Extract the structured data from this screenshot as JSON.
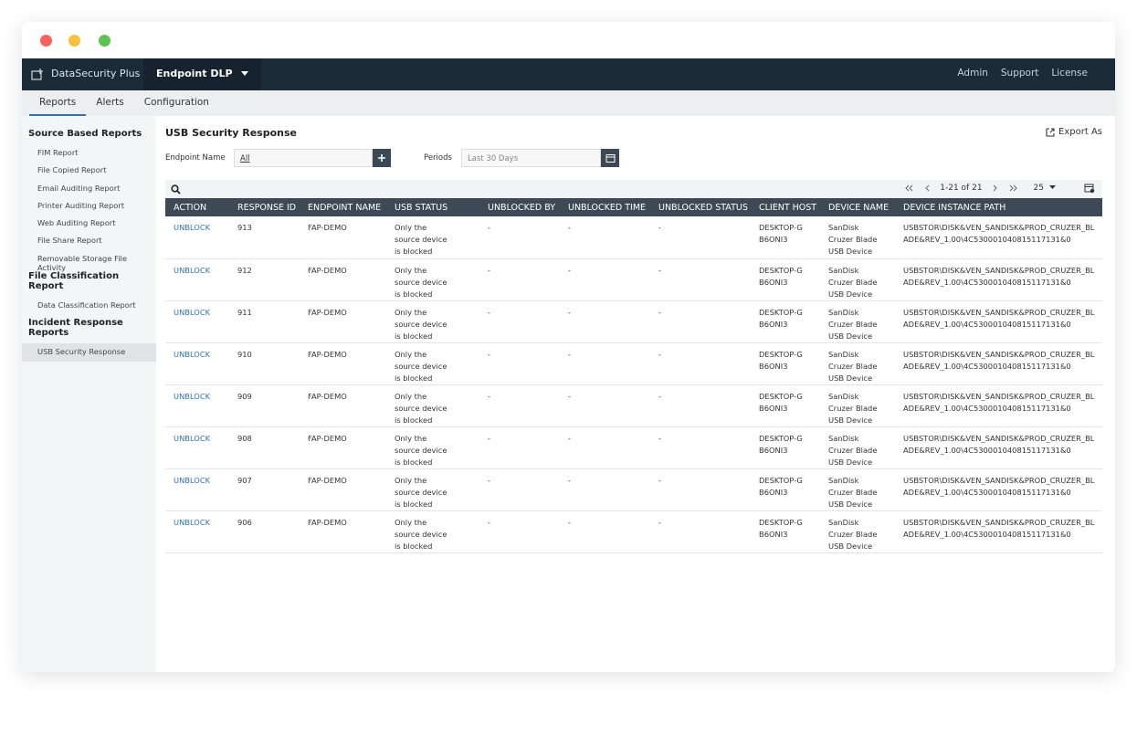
{
  "app": {
    "brand": "DataSecurity Plus",
    "product": "Endpoint DLP",
    "top_links": [
      "Admin",
      "Support",
      "License"
    ]
  },
  "tabs": [
    "Reports",
    "Alerts",
    "Configuration"
  ],
  "sidebar": [
    {
      "title": "Source Based Reports",
      "items": [
        "FIM Report",
        "File Copied Report",
        "Email Auditing Report",
        "Printer Auditing Report",
        "Web Auditing Report",
        "File Share Report",
        "Removable Storage File Activity"
      ]
    },
    {
      "title": "File Classification Report",
      "items": [
        "Data Classification Report"
      ]
    },
    {
      "title": "Incident Response Reports",
      "items": [
        "USB Security Response"
      ]
    }
  ],
  "report": {
    "title": "USB Security Response",
    "export": "Export As",
    "filters": {
      "endpoint_label": "Endpoint Name",
      "endpoint_value": "All",
      "period_label": "Periods",
      "period_value": "Last 30 Days"
    },
    "pagination": "1-21 of 21",
    "page_size": "25"
  },
  "table": {
    "columns": [
      "ACTION",
      "RESPONSE ID",
      "ENDPOINT NAME",
      "USB STATUS",
      "UNBLOCKED BY",
      "UNBLOCKED TIME",
      "UNBLOCKED STATUS",
      "CLIENT HOST",
      "DEVICE NAME",
      "DEVICE INSTANCE PATH"
    ],
    "rows": [
      [
        "UNBLOCK",
        "913",
        "FAP-DEMO",
        "Only the source device is blocked",
        "-",
        "-",
        "-",
        "DESKTOP-GB6ONI3",
        "SanDisk Cruzer Blade USB Device",
        "USBSTOR\\DISK&VEN_SANDISK&PROD_CRUZER_BLADE&REV_1.00\\4C530001040815117131&0"
      ],
      [
        "UNBLOCK",
        "912",
        "FAP-DEMO",
        "Only the source device is blocked",
        "-",
        "-",
        "-",
        "DESKTOP-GB6ONI3",
        "SanDisk Cruzer Blade USB Device",
        "USBSTOR\\DISK&VEN_SANDISK&PROD_CRUZER_BLADE&REV_1.00\\4C530001040815117131&0"
      ],
      [
        "UNBLOCK",
        "911",
        "FAP-DEMO",
        "Only the source device is blocked",
        "-",
        "-",
        "-",
        "DESKTOP-GB6ONI3",
        "SanDisk Cruzer Blade USB Device",
        "USBSTOR\\DISK&VEN_SANDISK&PROD_CRUZER_BLADE&REV_1.00\\4C530001040815117131&0"
      ],
      [
        "UNBLOCK",
        "910",
        "FAP-DEMO",
        "Only the source device is blocked",
        "-",
        "-",
        "-",
        "DESKTOP-GB6ONI3",
        "SanDisk Cruzer Blade USB Device",
        "USBSTOR\\DISK&VEN_SANDISK&PROD_CRUZER_BLADE&REV_1.00\\4C530001040815117131&0"
      ],
      [
        "UNBLOCK",
        "909",
        "FAP-DEMO",
        "Only the source device is blocked",
        "-",
        "-",
        "-",
        "DESKTOP-GB6ONI3",
        "SanDisk Cruzer Blade USB Device",
        "USBSTOR\\DISK&VEN_SANDISK&PROD_CRUZER_BLADE&REV_1.00\\4C530001040815117131&0"
      ],
      [
        "UNBLOCK",
        "908",
        "FAP-DEMO",
        "Only the source device is blocked",
        "-",
        "-",
        "-",
        "DESKTOP-GB6ONI3",
        "SanDisk Cruzer Blade USB Device",
        "USBSTOR\\DISK&VEN_SANDISK&PROD_CRUZER_BLADE&REV_1.00\\4C530001040815117131&0"
      ],
      [
        "UNBLOCK",
        "907",
        "FAP-DEMO",
        "Only the source device is blocked",
        "-",
        "-",
        "-",
        "DESKTOP-GB6ONI3",
        "SanDisk Cruzer Blade USB Device",
        "USBSTOR\\DISK&VEN_SANDISK&PROD_CRUZER_BLADE&REV_1.00\\4C530001040815117131&0"
      ],
      [
        "UNBLOCK",
        "906",
        "FAP-DEMO",
        "Only the source device is blocked",
        "-",
        "-",
        "-",
        "DESKTOP-GB6ONI3",
        "SanDisk Cruzer Blade USB Device",
        "USBSTOR\\DISK&VEN_SANDISK&PROD_CRUZER_BLADE&REV_1.00\\4C530001040815117131&0"
      ]
    ]
  }
}
